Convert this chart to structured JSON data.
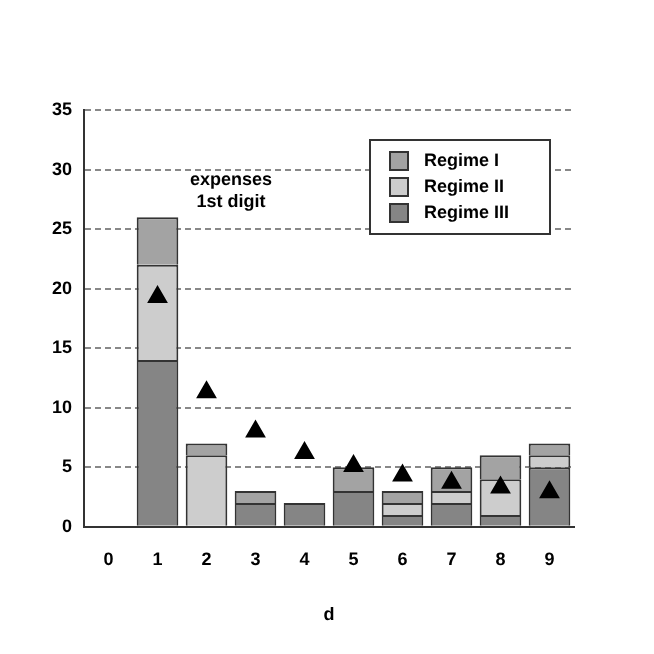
{
  "chart_data": {
    "type": "bar",
    "stacked": true,
    "xlabel": "d",
    "categories": [
      "0",
      "1",
      "2",
      "3",
      "4",
      "5",
      "6",
      "7",
      "8",
      "9"
    ],
    "series": [
      {
        "name": "Regime III",
        "color": "#858585",
        "values": [
          0,
          14,
          0,
          2,
          2,
          3,
          1,
          2,
          1,
          5
        ]
      },
      {
        "name": "Regime II",
        "color": "#cdcdcd",
        "values": [
          0,
          8,
          6,
          0,
          0,
          0,
          1,
          1,
          3,
          1
        ]
      },
      {
        "name": "Regime I",
        "color": "#a3a3a3",
        "values": [
          0,
          4,
          1,
          1,
          0,
          2,
          1,
          2,
          2,
          1
        ]
      },
      {
        "type": "scatter",
        "color": "#000000",
        "marker": "triangle",
        "x": [
          "1",
          "2",
          "3",
          "4",
          "5",
          "6",
          "7",
          "8",
          "9"
        ],
        "values": [
          19.3,
          11.3,
          8.0,
          6.2,
          5.1,
          4.3,
          3.7,
          3.3,
          2.9
        ]
      }
    ],
    "ylim": [
      0,
      35
    ],
    "yticks": [
      0,
      5,
      10,
      15,
      20,
      25,
      30,
      35
    ],
    "grid": "y",
    "legend": "top right",
    "annotations": [
      "expenses\n1st digit"
    ]
  }
}
